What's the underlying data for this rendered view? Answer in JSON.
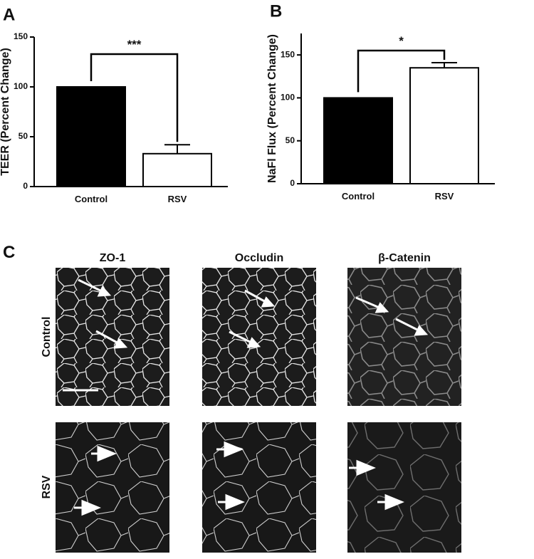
{
  "chart_data": [
    {
      "type": "bar",
      "panel": "A",
      "ylabel": "TEER (Percent Change)",
      "categories": [
        "Control",
        "RSV"
      ],
      "values": [
        100,
        33
      ],
      "errors": [
        null,
        9
      ],
      "colors": [
        "#000000",
        "#ffffff"
      ],
      "ylim": [
        0,
        150
      ],
      "yticks": [
        0,
        50,
        100,
        150
      ],
      "significance": "***"
    },
    {
      "type": "bar",
      "panel": "B",
      "ylabel": "NaFl Flux (Percent Change)",
      "categories": [
        "Control",
        "RSV"
      ],
      "values": [
        100,
        135
      ],
      "errors": [
        null,
        6
      ],
      "colors": [
        "#000000",
        "#ffffff"
      ],
      "ylim": [
        0,
        175
      ],
      "yticks": [
        0,
        50,
        100,
        150
      ],
      "significance": "*"
    }
  ],
  "panel_c": {
    "label": "C",
    "columns": [
      "ZO-1",
      "Occludin",
      "β-Catenin"
    ],
    "rows": [
      "Control",
      "RSV"
    ]
  }
}
